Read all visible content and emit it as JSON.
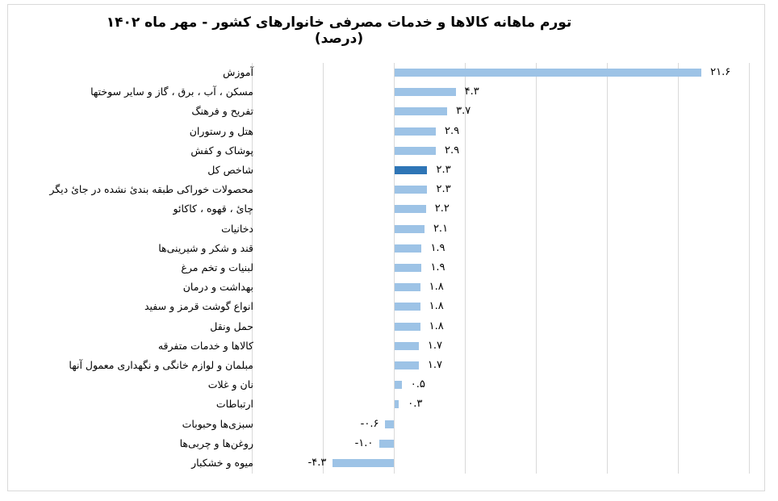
{
  "chart_data": {
    "type": "bar",
    "orientation": "horizontal",
    "title": "تورم ماهانه کالاها و خدمات مصرفی خانوارهای کشور - مهر ماه ۱۴۰۲ (درصد)",
    "xlabel": "",
    "ylabel": "",
    "xlim": [
      -10,
      25
    ],
    "grid": true,
    "grid_step": 5,
    "legend": null,
    "colors": {
      "default": "#9dc3e6",
      "highlight": "#2e75b6"
    },
    "highlight_category": "شاخص کل",
    "categories": [
      "آموزش",
      "مسکن ، آب ، برق ، گاز و سایر سوختها",
      "تفریح و فرهنگ",
      "هتل و رستوران",
      "پوشاک و کفش",
      "شاخص کل",
      "محصولات خوراکی طبقه بندیٔ نشده در جایٔ دیگر",
      "چایٔ ، قهوه ، کاکائو",
      "دخانیات",
      "قند و شکر و شیرینی‌ها",
      "لبنیات و تخم مرغ",
      "بهداشت و درمان",
      "انواع گوشت قرمز و سفید",
      "حمل ونقل",
      "کالاها و خدمات متفرقه",
      "مبلمان و لوازم خانگی و نگهداری معمول آنها",
      "نان و غلات",
      "ارتباطات",
      "سبزی‌ها وحبوبات",
      "روغن‌ها و چربی‌ها",
      "میوه و خشکبار"
    ],
    "values": [
      21.6,
      4.3,
      3.7,
      2.9,
      2.9,
      2.3,
      2.3,
      2.2,
      2.1,
      1.9,
      1.9,
      1.8,
      1.8,
      1.8,
      1.7,
      1.7,
      0.5,
      0.3,
      -0.6,
      -1.0,
      -4.3
    ],
    "value_labels": [
      "۲۱.۶",
      "۴.۳",
      "۳.۷",
      "۲.۹",
      "۲.۹",
      "۲.۳",
      "۲.۳",
      "۲.۲",
      "۲.۱",
      "۱.۹",
      "۱.۹",
      "۱.۸",
      "۱.۸",
      "۱.۸",
      "۱.۷",
      "۱.۷",
      "۰.۵",
      "۰.۳",
      "-۰.۶",
      "-۱.۰",
      "-۴.۳"
    ]
  }
}
